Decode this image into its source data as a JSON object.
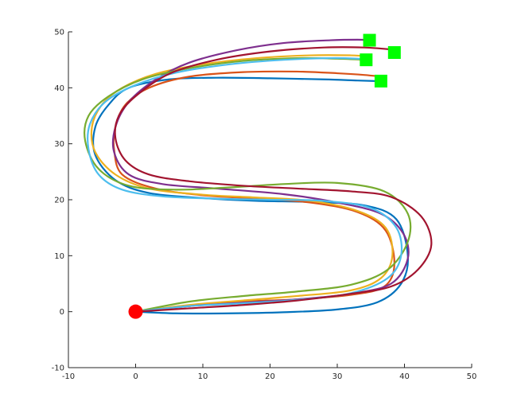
{
  "chart_data": {
    "type": "line",
    "title": "",
    "xlabel": "",
    "ylabel": "",
    "xlim": [
      -10,
      50
    ],
    "ylim": [
      -10,
      50
    ],
    "x_ticks": [
      -10,
      0,
      10,
      20,
      30,
      40,
      50
    ],
    "y_ticks": [
      -10,
      0,
      10,
      20,
      30,
      40,
      50
    ],
    "grid": false,
    "legend": "none",
    "start": {
      "x": 0,
      "y": 0,
      "color": "#ff0000",
      "marker": "circle"
    },
    "goals": [
      {
        "x": 34.8,
        "y": 48.5,
        "color": "#00ff00",
        "marker": "square"
      },
      {
        "x": 38.5,
        "y": 46.3,
        "color": "#00ff00",
        "marker": "square"
      },
      {
        "x": 34.3,
        "y": 45.0,
        "color": "#00ff00",
        "marker": "square"
      },
      {
        "x": 36.5,
        "y": 41.2,
        "color": "#00ff00",
        "marker": "square"
      }
    ],
    "series": [
      {
        "color": "#0072bd",
        "points": [
          [
            0,
            0
          ],
          [
            6,
            -0.3
          ],
          [
            14,
            -0.3
          ],
          [
            22,
            -0.1
          ],
          [
            30,
            0.4
          ],
          [
            36,
            1.7
          ],
          [
            39.5,
            5.0
          ],
          [
            40.5,
            10.0
          ],
          [
            38.8,
            16.5
          ],
          [
            34,
            19.0
          ],
          [
            26,
            19.6
          ],
          [
            18,
            19.8
          ],
          [
            10,
            20.3
          ],
          [
            2,
            21.2
          ],
          [
            -3,
            23.5
          ],
          [
            -6,
            28.0
          ],
          [
            -6,
            33.0
          ],
          [
            -4,
            37.0
          ],
          [
            -1,
            40.0
          ],
          [
            5,
            41.5
          ],
          [
            12,
            41.8
          ],
          [
            20,
            41.7
          ],
          [
            28,
            41.5
          ],
          [
            33,
            41.3
          ],
          [
            35.8,
            41.2
          ]
        ]
      },
      {
        "color": "#d95319",
        "points": [
          [
            0,
            0
          ],
          [
            8,
            1.0
          ],
          [
            16,
            1.8
          ],
          [
            24,
            2.2
          ],
          [
            32,
            3.0
          ],
          [
            37,
            4.5
          ],
          [
            38.5,
            8.5
          ],
          [
            37.2,
            14.5
          ],
          [
            33,
            17.8
          ],
          [
            26,
            19.5
          ],
          [
            18,
            20.2
          ],
          [
            10,
            20.8
          ],
          [
            3,
            22.0
          ],
          [
            -2,
            24.5
          ],
          [
            -3.2,
            29.0
          ],
          [
            -3,
            33.0
          ],
          [
            -1.5,
            37.0
          ],
          [
            2,
            40.0
          ],
          [
            8,
            42.0
          ],
          [
            16,
            42.8
          ],
          [
            24,
            42.9
          ],
          [
            30,
            42.6
          ],
          [
            34,
            42.3
          ],
          [
            36.5,
            42.0
          ]
        ]
      },
      {
        "color": "#edb120",
        "points": [
          [
            0,
            0
          ],
          [
            8,
            1.2
          ],
          [
            16,
            2.0
          ],
          [
            24,
            2.8
          ],
          [
            32,
            3.8
          ],
          [
            36.5,
            6.0
          ],
          [
            38.2,
            10.0
          ],
          [
            37.2,
            15.0
          ],
          [
            33,
            18.0
          ],
          [
            26,
            19.8
          ],
          [
            18,
            20.4
          ],
          [
            10,
            20.9
          ],
          [
            2,
            22.0
          ],
          [
            -3,
            24.5
          ],
          [
            -6,
            28.5
          ],
          [
            -6.5,
            33.0
          ],
          [
            -5,
            37.0
          ],
          [
            -2,
            40.0
          ],
          [
            3,
            42.5
          ],
          [
            10,
            44.2
          ],
          [
            18,
            45.3
          ],
          [
            26,
            45.8
          ],
          [
            32,
            45.8
          ],
          [
            34.8,
            45.6
          ]
        ]
      },
      {
        "color": "#7e2f8e",
        "points": [
          [
            0,
            0
          ],
          [
            8,
            1.0
          ],
          [
            16,
            1.6
          ],
          [
            24,
            2.2
          ],
          [
            32,
            3.2
          ],
          [
            38,
            5.0
          ],
          [
            40.5,
            9.5
          ],
          [
            39.8,
            14.0
          ],
          [
            36.5,
            17.5
          ],
          [
            30,
            19.5
          ],
          [
            22,
            21.0
          ],
          [
            12,
            22.0
          ],
          [
            4,
            22.8
          ],
          [
            -1,
            24.5
          ],
          [
            -3.2,
            28.5
          ],
          [
            -3,
            33.0
          ],
          [
            -1,
            37.5
          ],
          [
            3,
            41.5
          ],
          [
            8,
            44.5
          ],
          [
            15,
            46.7
          ],
          [
            22,
            48.0
          ],
          [
            29,
            48.5
          ],
          [
            33,
            48.6
          ],
          [
            34.8,
            48.5
          ]
        ]
      },
      {
        "color": "#77ac30",
        "points": [
          [
            0,
            0
          ],
          [
            8,
            1.8
          ],
          [
            16,
            2.8
          ],
          [
            24,
            3.6
          ],
          [
            32,
            4.8
          ],
          [
            37.5,
            7.5
          ],
          [
            40.5,
            12.5
          ],
          [
            40.5,
            17.5
          ],
          [
            37,
            21.5
          ],
          [
            30,
            23.0
          ],
          [
            22,
            22.8
          ],
          [
            14,
            22.2
          ],
          [
            6,
            21.8
          ],
          [
            -1,
            22.5
          ],
          [
            -5.5,
            25.5
          ],
          [
            -7.5,
            30.5
          ],
          [
            -7,
            35.0
          ],
          [
            -4,
            38.5
          ],
          [
            1,
            41.5
          ],
          [
            8,
            43.5
          ],
          [
            16,
            44.8
          ],
          [
            24,
            45.3
          ],
          [
            30,
            45.2
          ],
          [
            34.3,
            45.0
          ]
        ]
      },
      {
        "color": "#4dbeee",
        "points": [
          [
            0,
            0
          ],
          [
            8,
            1.0
          ],
          [
            16,
            1.5
          ],
          [
            24,
            2.1
          ],
          [
            32,
            3.3
          ],
          [
            37.5,
            6.0
          ],
          [
            39.5,
            10.0
          ],
          [
            38.8,
            15.0
          ],
          [
            35,
            18.5
          ],
          [
            28,
            19.8
          ],
          [
            20,
            20.0
          ],
          [
            12,
            20.2
          ],
          [
            4,
            20.6
          ],
          [
            -2,
            21.8
          ],
          [
            -5.5,
            24.5
          ],
          [
            -7,
            29.0
          ],
          [
            -6.8,
            33.5
          ],
          [
            -4.5,
            37.5
          ],
          [
            0,
            40.5
          ],
          [
            6,
            42.7
          ],
          [
            14,
            44.2
          ],
          [
            22,
            45.0
          ],
          [
            29,
            45.3
          ],
          [
            33,
            45.2
          ],
          [
            34.5,
            45.0
          ]
        ]
      },
      {
        "color": "#a2142f",
        "points": [
          [
            0,
            0
          ],
          [
            8,
            0.6
          ],
          [
            16,
            1.2
          ],
          [
            24,
            2.0
          ],
          [
            32,
            3.2
          ],
          [
            38,
            4.5
          ],
          [
            42,
            7.5
          ],
          [
            44,
            12.0
          ],
          [
            42.5,
            17.0
          ],
          [
            38,
            20.5
          ],
          [
            32,
            21.5
          ],
          [
            24,
            22.0
          ],
          [
            16,
            22.5
          ],
          [
            8,
            23.3
          ],
          [
            2,
            24.5
          ],
          [
            -1.5,
            27.0
          ],
          [
            -3,
            31.0
          ],
          [
            -2.5,
            35.0
          ],
          [
            0,
            38.5
          ],
          [
            5,
            42.5
          ],
          [
            12,
            45.0
          ],
          [
            20,
            46.5
          ],
          [
            28,
            47.2
          ],
          [
            34,
            47.2
          ],
          [
            38.5,
            46.8
          ]
        ]
      }
    ]
  }
}
